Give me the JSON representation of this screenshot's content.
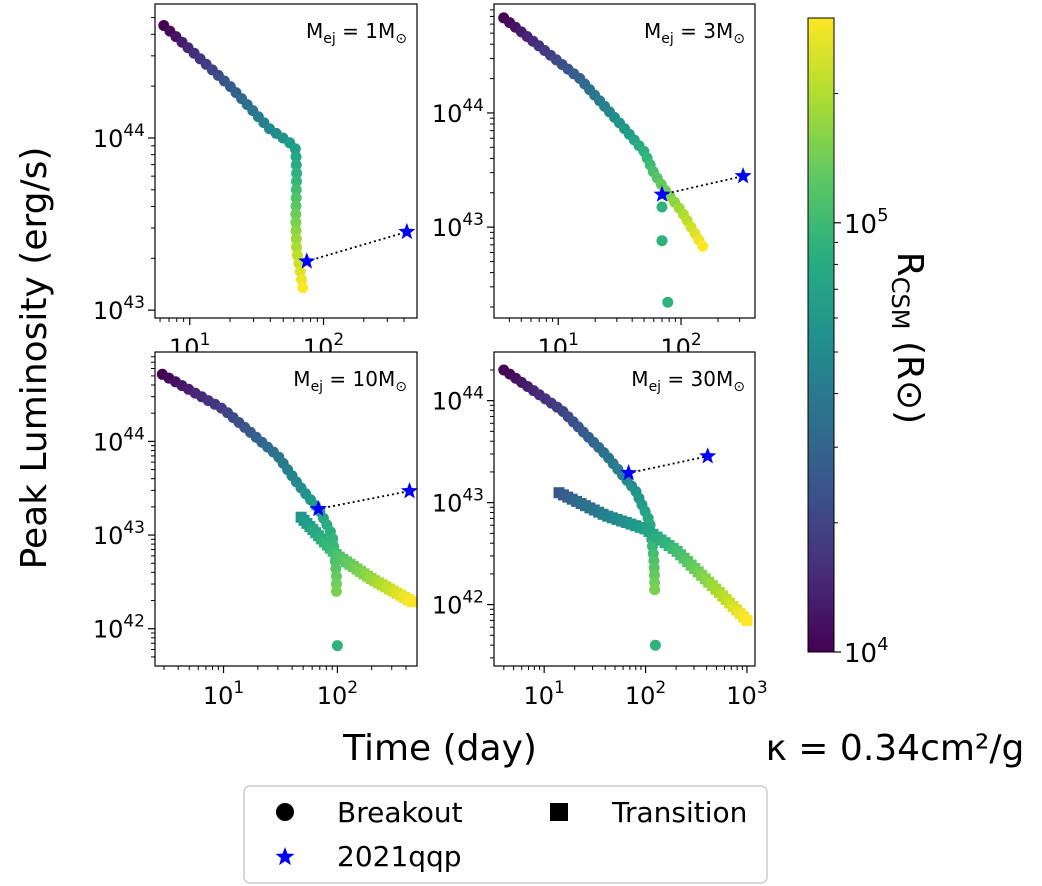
{
  "figure": {
    "ylabel": "Peak Luminosity (erg/s)",
    "xlabel": "Time (day)",
    "kappa_label": "κ = 0.34cm²/g",
    "colorbar": {
      "label": "R_CSM (R⊙)",
      "label_main": "R",
      "label_sub": "CSM",
      "label_rest": " (R⊙)",
      "min": 10000,
      "max": 300000,
      "scale": "log",
      "colormap": "viridis",
      "ticks": [
        {
          "value": 10000,
          "label_base": "10",
          "label_exp": "4"
        },
        {
          "value": 100000,
          "label_base": "10",
          "label_exp": "5"
        }
      ]
    },
    "legend": {
      "placement": "bottom-center",
      "items": [
        {
          "marker": "circle",
          "label": "Breakout",
          "color": "#000000"
        },
        {
          "marker": "square",
          "label": "Transition",
          "color": "#000000"
        },
        {
          "marker": "star",
          "label": "2021qqp",
          "color": "#0000ff"
        }
      ]
    },
    "colors": {
      "star": "#0000ff",
      "connector": "#000000"
    }
  },
  "chart_data": [
    {
      "type": "scatter",
      "title": "M_ej = 1M⊙",
      "title_parts": {
        "base": "M",
        "sub": "ej",
        "rest": " = 1M",
        "sym": "⊙"
      },
      "xscale": "log",
      "yscale": "log",
      "xlim": [
        5.5,
        500
      ],
      "ylim": [
        9000000000000000000000000000000000000000000,
        600000000000000000000000000000000000000000000
      ],
      "xticks": [
        {
          "value": 10,
          "exp": "1"
        },
        {
          "value": 100,
          "exp": "2"
        }
      ],
      "yticks": [
        {
          "value": 10000000000000000000000000000000000000000000,
          "exp": "43"
        },
        {
          "value": 100000000000000000000000000000000000000000000,
          "exp": "44"
        }
      ],
      "breakout": {
        "path": [
          [
            6.4,
            4.5e+44
          ],
          [
            20,
            2e+44
          ],
          [
            40,
            1.12e+44
          ],
          [
            55,
            9.5e+43
          ],
          [
            62,
            8.6e+43
          ],
          [
            63,
            6e+43
          ],
          [
            62,
            3.5e+43
          ],
          [
            63,
            2.2e+43
          ],
          [
            66,
            1.8e+43
          ],
          [
            70,
            1.35e+43
          ]
        ],
        "rcsm_range": [
          10000,
          300000
        ],
        "count": 40
      },
      "transition": null,
      "qqp": {
        "points": [
          [
            75,
            1.92e+43
          ],
          [
            420,
            2.85e+43
          ]
        ]
      }
    },
    {
      "type": "scatter",
      "title": "M_ej = 3M⊙",
      "title_parts": {
        "base": "M",
        "sub": "ej",
        "rest": " = 3M",
        "sym": "⊙"
      },
      "xscale": "log",
      "yscale": "log",
      "xlim": [
        3,
        400
      ],
      "ylim": [
        1600000000000000000000000000000000000000000,
        900000000000000000000000000000000000000000000
      ],
      "xticks": [
        {
          "value": 10,
          "exp": "1"
        },
        {
          "value": 100,
          "exp": "2"
        }
      ],
      "yticks": [
        {
          "value": 10000000000000000000000000000000000000000000,
          "exp": "43"
        },
        {
          "value": 100000000000000000000000000000000000000000000,
          "exp": "44"
        }
      ],
      "breakout": {
        "path": [
          [
            3.6,
            6.8e+44
          ],
          [
            15,
            2e+44
          ],
          [
            35,
            7.2e+43
          ],
          [
            50,
            4.6e+43
          ],
          [
            60,
            3e+43
          ],
          [
            72,
            2.2e+43
          ],
          [
            100,
            1.4e+43
          ],
          [
            150,
            6.8e+42
          ]
        ],
        "rcsm_range": [
          10000,
          300000
        ],
        "count": 42,
        "outliers": [
          [
            70,
            1.5e+43
          ],
          [
            70,
            7.6e+42
          ],
          [
            78,
            2.2e+42
          ]
        ]
      },
      "transition": null,
      "qqp": {
        "points": [
          [
            70,
            1.93e+43
          ],
          [
            320,
            2.8e+43
          ]
        ]
      }
    },
    {
      "type": "scatter",
      "title": "M_ej = 10M⊙",
      "title_parts": {
        "base": "M",
        "sub": "ej",
        "rest": " = 10M",
        "sym": "⊙"
      },
      "xscale": "log",
      "yscale": "log",
      "xlim": [
        2.5,
        500
      ],
      "ylim": [
        400000000000000000000000000000000000000000,
        900000000000000000000000000000000000000000000
      ],
      "xticks": [
        {
          "value": 10,
          "exp": "1"
        },
        {
          "value": 100,
          "exp": "2"
        }
      ],
      "yticks": [
        {
          "value": 1000000000000000000000000000000000000000000,
          "exp": "42"
        },
        {
          "value": 10000000000000000000000000000000000000000000,
          "exp": "43"
        },
        {
          "value": 100000000000000000000000000000000000000000000,
          "exp": "44"
        }
      ],
      "breakout": {
        "path": [
          [
            2.9,
            5.2e+44
          ],
          [
            10,
            2.2e+44
          ],
          [
            30,
            7e+43
          ],
          [
            45,
            3.5e+43
          ],
          [
            70,
            1.8e+43
          ],
          [
            90,
            1e+43
          ],
          [
            95,
            6e+42
          ],
          [
            98,
            3.6e+42
          ],
          [
            98,
            2.5e+42
          ]
        ],
        "rcsm_range": [
          10000,
          150000
        ],
        "count": 40,
        "outliers": [
          [
            100,
            6.6e+41
          ]
        ]
      },
      "transition": {
        "path": [
          [
            48,
            1.55e+43
          ],
          [
            100,
            6e+42
          ],
          [
            200,
            3.4e+42
          ],
          [
            450,
            1.95e+42
          ]
        ],
        "rcsm_range": [
          60000,
          300000
        ],
        "count": 34
      },
      "qqp": {
        "points": [
          [
            68,
            1.9e+43
          ],
          [
            430,
            2.95e+43
          ]
        ]
      }
    },
    {
      "type": "scatter",
      "title": "M_ej = 30M⊙",
      "title_parts": {
        "base": "M",
        "sub": "ej",
        "rest": " = 30M",
        "sym": "⊙"
      },
      "xscale": "log",
      "yscale": "log",
      "xlim": [
        3.2,
        1200
      ],
      "ylim": [
        250000000000000000000000000000000000000000,
        300000000000000000000000000000000000000000000
      ],
      "xticks": [
        {
          "value": 10,
          "exp": "1"
        },
        {
          "value": 100,
          "exp": "2"
        },
        {
          "value": 1000,
          "exp": "3"
        }
      ],
      "yticks": [
        {
          "value": 1000000000000000000000000000000000000000000,
          "exp": "42"
        },
        {
          "value": 10000000000000000000000000000000000000000000,
          "exp": "43"
        },
        {
          "value": 100000000000000000000000000000000000000000000,
          "exp": "44"
        }
      ],
      "breakout": {
        "path": [
          [
            4,
            2e+44
          ],
          [
            15,
            8e+43
          ],
          [
            40,
            3e+43
          ],
          [
            80,
            1.3e+43
          ],
          [
            110,
            6.5e+42
          ],
          [
            120,
            3e+42
          ],
          [
            122,
            2.2e+42
          ],
          [
            123,
            1.4e+42
          ]
        ],
        "rcsm_range": [
          10000,
          150000
        ],
        "count": 40,
        "outliers": [
          [
            125,
            4e+41
          ]
        ]
      },
      "transition": {
        "path": [
          [
            14,
            1.25e+43
          ],
          [
            40,
            7.5e+42
          ],
          [
            100,
            5.5e+42
          ],
          [
            200,
            3.4e+42
          ],
          [
            500,
            1.4e+42
          ],
          [
            1000,
            7e+41
          ]
        ],
        "rcsm_range": [
          25000,
          300000
        ],
        "count": 48
      },
      "qqp": {
        "points": [
          [
            68,
            1.95e+43
          ],
          [
            410,
            2.85e+43
          ]
        ]
      }
    }
  ]
}
